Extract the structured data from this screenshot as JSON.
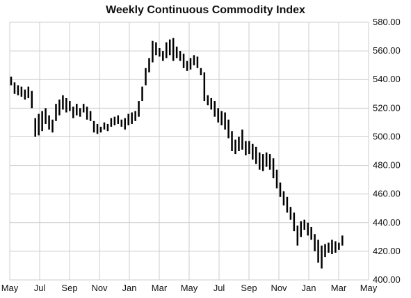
{
  "chart_data": {
    "type": "bar",
    "subtype": "weekly-high-low",
    "title": "Weekly Continuous Commodity Index",
    "xlabel": "",
    "ylabel": "",
    "ylim": [
      400,
      580
    ],
    "y_ticks": [
      "400.00",
      "420.00",
      "440.00",
      "460.00",
      "480.00",
      "500.00",
      "520.00",
      "540.00",
      "560.00",
      "580.00"
    ],
    "x_ticks": [
      "May",
      "Jul",
      "Sep",
      "Nov",
      "Jan",
      "Mar",
      "May",
      "Jul",
      "Sep",
      "Nov",
      "Jan",
      "Mar",
      "May"
    ],
    "x_range_weeks": [
      0,
      104
    ],
    "grid": true,
    "legend": "none",
    "bar_color": "#000000",
    "grid_color": "#cccccc",
    "series": [
      {
        "values": [
          [
            0,
            536,
            542
          ],
          [
            1,
            530,
            538
          ],
          [
            2,
            529,
            536
          ],
          [
            3,
            528,
            535
          ],
          [
            4,
            526,
            533
          ],
          [
            5,
            527,
            535
          ],
          [
            6,
            520,
            532
          ],
          [
            7,
            500,
            513
          ],
          [
            8,
            501,
            516
          ],
          [
            9,
            504,
            518
          ],
          [
            10,
            509,
            520
          ],
          [
            11,
            505,
            515
          ],
          [
            12,
            503,
            512
          ],
          [
            13,
            511,
            523
          ],
          [
            14,
            515,
            526
          ],
          [
            15,
            519,
            529
          ],
          [
            16,
            517,
            527
          ],
          [
            17,
            518,
            525
          ],
          [
            18,
            513,
            521
          ],
          [
            19,
            515,
            523
          ],
          [
            20,
            514,
            520
          ],
          [
            21,
            517,
            523
          ],
          [
            22,
            512,
            521
          ],
          [
            23,
            511,
            518
          ],
          [
            24,
            503,
            511
          ],
          [
            25,
            502,
            509
          ],
          [
            26,
            503,
            507
          ],
          [
            27,
            505,
            510
          ],
          [
            28,
            504,
            509
          ],
          [
            29,
            507,
            513
          ],
          [
            30,
            508,
            514
          ],
          [
            31,
            509,
            515
          ],
          [
            32,
            507,
            512
          ],
          [
            33,
            505,
            513
          ],
          [
            34,
            508,
            516
          ],
          [
            35,
            509,
            517
          ],
          [
            36,
            511,
            518
          ],
          [
            37,
            514,
            525
          ],
          [
            38,
            525,
            535
          ],
          [
            39,
            536,
            548
          ],
          [
            40,
            545,
            555
          ],
          [
            41,
            552,
            567
          ],
          [
            42,
            557,
            566
          ],
          [
            43,
            556,
            562
          ],
          [
            44,
            553,
            560
          ],
          [
            45,
            555,
            566
          ],
          [
            46,
            557,
            568
          ],
          [
            47,
            553,
            569
          ],
          [
            48,
            555,
            563
          ],
          [
            49,
            553,
            560
          ],
          [
            50,
            548,
            558
          ],
          [
            51,
            546,
            553
          ],
          [
            52,
            547,
            555
          ],
          [
            53,
            550,
            557
          ],
          [
            54,
            548,
            556
          ],
          [
            55,
            543,
            548
          ],
          [
            56,
            525,
            545
          ],
          [
            57,
            522,
            529
          ],
          [
            58,
            519,
            527
          ],
          [
            59,
            514,
            525
          ],
          [
            60,
            510,
            520
          ],
          [
            61,
            508,
            518
          ],
          [
            62,
            505,
            517
          ],
          [
            63,
            499,
            512
          ],
          [
            64,
            490,
            504
          ],
          [
            65,
            488,
            498
          ],
          [
            66,
            490,
            500
          ],
          [
            67,
            491,
            505
          ],
          [
            68,
            487,
            497
          ],
          [
            69,
            488,
            497
          ],
          [
            70,
            484,
            495
          ],
          [
            71,
            481,
            493
          ],
          [
            72,
            477,
            489
          ],
          [
            73,
            476,
            488
          ],
          [
            74,
            479,
            489
          ],
          [
            75,
            477,
            488
          ],
          [
            76,
            471,
            485
          ],
          [
            77,
            464,
            477
          ],
          [
            78,
            458,
            468
          ],
          [
            79,
            452,
            462
          ],
          [
            80,
            447,
            458
          ],
          [
            81,
            442,
            451
          ],
          [
            82,
            434,
            447
          ],
          [
            83,
            424,
            438
          ],
          [
            84,
            430,
            441
          ],
          [
            85,
            435,
            442
          ],
          [
            86,
            431,
            440
          ],
          [
            87,
            428,
            437
          ],
          [
            88,
            420,
            432
          ],
          [
            89,
            412,
            428
          ],
          [
            90,
            408,
            424
          ],
          [
            91,
            416,
            425
          ],
          [
            92,
            419,
            426
          ],
          [
            93,
            418,
            428
          ],
          [
            94,
            419,
            427
          ],
          [
            95,
            421,
            426
          ],
          [
            96,
            424,
            431
          ]
        ]
      }
    ]
  }
}
